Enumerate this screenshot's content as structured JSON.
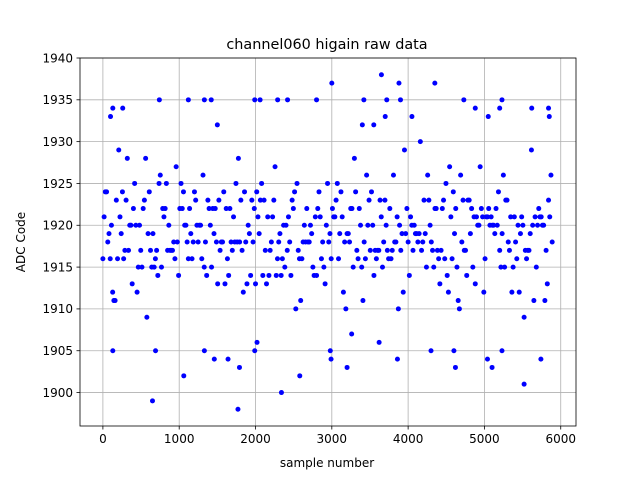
{
  "chart_data": {
    "type": "scatter",
    "title": "channel060 higain raw data",
    "xlabel": "sample number",
    "ylabel": "ADC Code",
    "xlim": [
      -300,
      6200
    ],
    "ylim": [
      1896,
      1940
    ],
    "xticks": [
      0,
      1000,
      2000,
      3000,
      4000,
      5000,
      6000
    ],
    "yticks": [
      1900,
      1905,
      1910,
      1915,
      1920,
      1925,
      1930,
      1935,
      1940
    ],
    "grid": true,
    "legend": "none",
    "marker_color": "#0000ff",
    "n_samples": 5900,
    "sample_step": 16,
    "dense_band": [
      1908,
      1930
    ],
    "series": [
      {
        "bulk": {
          "x_range": [
            0,
            5900
          ],
          "y_levels": [
            1908,
            1909,
            1910,
            1911,
            1912,
            1913,
            1914,
            1915,
            1916,
            1917,
            1918,
            1919,
            1920,
            1921,
            1922,
            1923,
            1924,
            1925,
            1926,
            1927,
            1928,
            1929,
            1930
          ],
          "y_weights": [
            1,
            2,
            3,
            5,
            8,
            12,
            17,
            22,
            27,
            31,
            34,
            35,
            34,
            31,
            27,
            22,
            17,
            12,
            8,
            5,
            3,
            2,
            1
          ]
        },
        "points": [
          {
            "x": 650,
            "y": 1899
          },
          {
            "x": 1060,
            "y": 1902
          },
          {
            "x": 1770,
            "y": 1898
          },
          {
            "x": 1790,
            "y": 1903
          },
          {
            "x": 2340,
            "y": 1900
          },
          {
            "x": 2580,
            "y": 1902
          },
          {
            "x": 2990,
            "y": 1904
          },
          {
            "x": 3200,
            "y": 1903
          },
          {
            "x": 5520,
            "y": 1901
          },
          {
            "x": 5100,
            "y": 1903
          },
          {
            "x": 4620,
            "y": 1903
          },
          {
            "x": 130,
            "y": 1905
          },
          {
            "x": 690,
            "y": 1905
          },
          {
            "x": 1330,
            "y": 1905
          },
          {
            "x": 1460,
            "y": 1904
          },
          {
            "x": 1640,
            "y": 1904
          },
          {
            "x": 1990,
            "y": 1905
          },
          {
            "x": 2020,
            "y": 1906
          },
          {
            "x": 2980,
            "y": 1905
          },
          {
            "x": 3620,
            "y": 1906
          },
          {
            "x": 3860,
            "y": 1904
          },
          {
            "x": 4300,
            "y": 1905
          },
          {
            "x": 5040,
            "y": 1904
          },
          {
            "x": 5230,
            "y": 1905
          },
          {
            "x": 5740,
            "y": 1904
          },
          {
            "x": 4600,
            "y": 1905
          },
          {
            "x": 3260,
            "y": 1907
          },
          {
            "x": 3000,
            "y": 1937
          },
          {
            "x": 3650,
            "y": 1938
          },
          {
            "x": 3880,
            "y": 1937
          },
          {
            "x": 4350,
            "y": 1937
          },
          {
            "x": 740,
            "y": 1935
          },
          {
            "x": 1120,
            "y": 1935
          },
          {
            "x": 1330,
            "y": 1935
          },
          {
            "x": 1420,
            "y": 1935
          },
          {
            "x": 1990,
            "y": 1935
          },
          {
            "x": 2060,
            "y": 1935
          },
          {
            "x": 2290,
            "y": 1935
          },
          {
            "x": 2420,
            "y": 1935
          },
          {
            "x": 2800,
            "y": 1935
          },
          {
            "x": 3420,
            "y": 1935
          },
          {
            "x": 3720,
            "y": 1935
          },
          {
            "x": 3900,
            "y": 1935
          },
          {
            "x": 4730,
            "y": 1935
          },
          {
            "x": 5230,
            "y": 1935
          },
          {
            "x": 5840,
            "y": 1934
          },
          {
            "x": 100,
            "y": 1933
          },
          {
            "x": 130,
            "y": 1934
          },
          {
            "x": 260,
            "y": 1934
          },
          {
            "x": 4050,
            "y": 1933
          },
          {
            "x": 4880,
            "y": 1934
          },
          {
            "x": 5050,
            "y": 1933
          },
          {
            "x": 5200,
            "y": 1934
          },
          {
            "x": 5620,
            "y": 1934
          },
          {
            "x": 5850,
            "y": 1933
          },
          {
            "x": 1500,
            "y": 1932
          },
          {
            "x": 3400,
            "y": 1932
          },
          {
            "x": 3550,
            "y": 1932
          },
          {
            "x": 3700,
            "y": 1933
          }
        ]
      }
    ]
  }
}
